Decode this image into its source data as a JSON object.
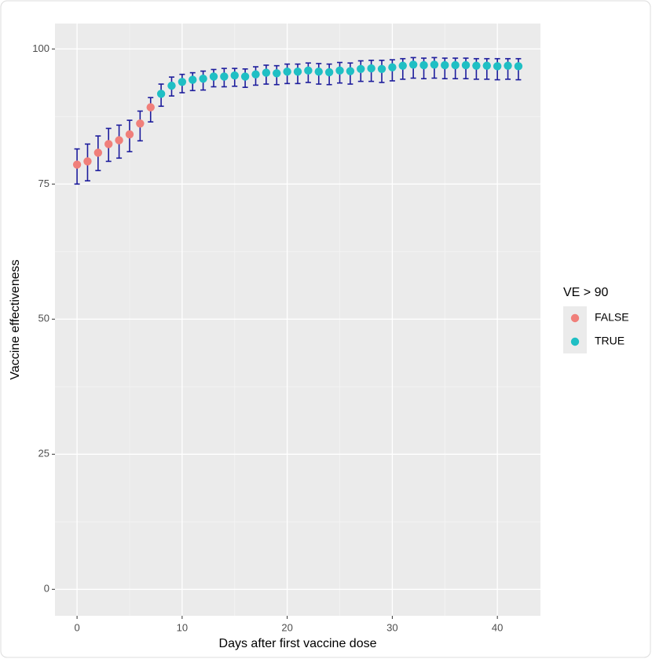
{
  "chart_data": {
    "type": "errorbar-scatter",
    "x_label": "Days after first vaccine dose",
    "y_label": "Vaccine effectiveness",
    "legend_title": "VE > 90",
    "legend_position": "right",
    "grid": true,
    "panel_color": "#ebebeb",
    "errorbar_color": "#1c1c9c",
    "xlim": [
      -2.1,
      44.1
    ],
    "ylim": [
      -4.9,
      104.7
    ],
    "xticks": [
      0,
      10,
      20,
      30,
      40
    ],
    "yticks": [
      0,
      25,
      50,
      75,
      100
    ],
    "series": [
      {
        "name": "FALSE",
        "color": "#f07f7a",
        "x": [
          0,
          1,
          2,
          3,
          4,
          5,
          6,
          7
        ],
        "values": [
          78.6,
          79.2,
          80.8,
          82.4,
          83.1,
          84.2,
          86.2,
          89.2
        ],
        "lower": [
          75.0,
          75.6,
          77.5,
          79.2,
          79.8,
          81.0,
          83.0,
          86.5
        ],
        "upper": [
          81.5,
          82.4,
          83.9,
          85.3,
          85.9,
          86.8,
          88.5,
          91.0
        ]
      },
      {
        "name": "TRUE",
        "color": "#1fbfc4",
        "x": [
          8,
          9,
          10,
          11,
          12,
          13,
          14,
          15,
          16,
          17,
          18,
          19,
          20,
          21,
          22,
          23,
          24,
          25,
          26,
          27,
          28,
          29,
          30,
          31,
          32,
          33,
          34,
          35,
          36,
          37,
          38,
          39,
          40,
          41,
          42
        ],
        "values": [
          91.7,
          93.2,
          93.9,
          94.3,
          94.5,
          94.9,
          94.9,
          95.1,
          94.9,
          95.3,
          95.6,
          95.5,
          95.8,
          95.8,
          96.0,
          95.8,
          95.7,
          96.0,
          95.9,
          96.3,
          96.4,
          96.3,
          96.6,
          96.9,
          97.1,
          97.0,
          97.1,
          97.0,
          97.0,
          97.0,
          96.9,
          96.9,
          96.8,
          96.9,
          96.8
        ],
        "lower": [
          89.4,
          91.3,
          91.9,
          92.3,
          92.4,
          93.0,
          93.0,
          93.1,
          92.9,
          93.3,
          93.5,
          93.4,
          93.6,
          93.6,
          93.8,
          93.5,
          93.4,
          93.7,
          93.5,
          94.0,
          94.0,
          93.8,
          94.1,
          94.4,
          94.6,
          94.5,
          94.6,
          94.5,
          94.5,
          94.5,
          94.4,
          94.4,
          94.3,
          94.4,
          94.3
        ],
        "upper": [
          93.5,
          94.8,
          95.3,
          95.6,
          95.9,
          96.2,
          96.4,
          96.4,
          96.3,
          96.7,
          97.0,
          96.9,
          97.2,
          97.2,
          97.4,
          97.3,
          97.2,
          97.5,
          97.4,
          97.8,
          97.9,
          97.9,
          98.0,
          98.2,
          98.4,
          98.3,
          98.4,
          98.3,
          98.3,
          98.3,
          98.2,
          98.2,
          98.2,
          98.2,
          98.2
        ]
      }
    ]
  }
}
